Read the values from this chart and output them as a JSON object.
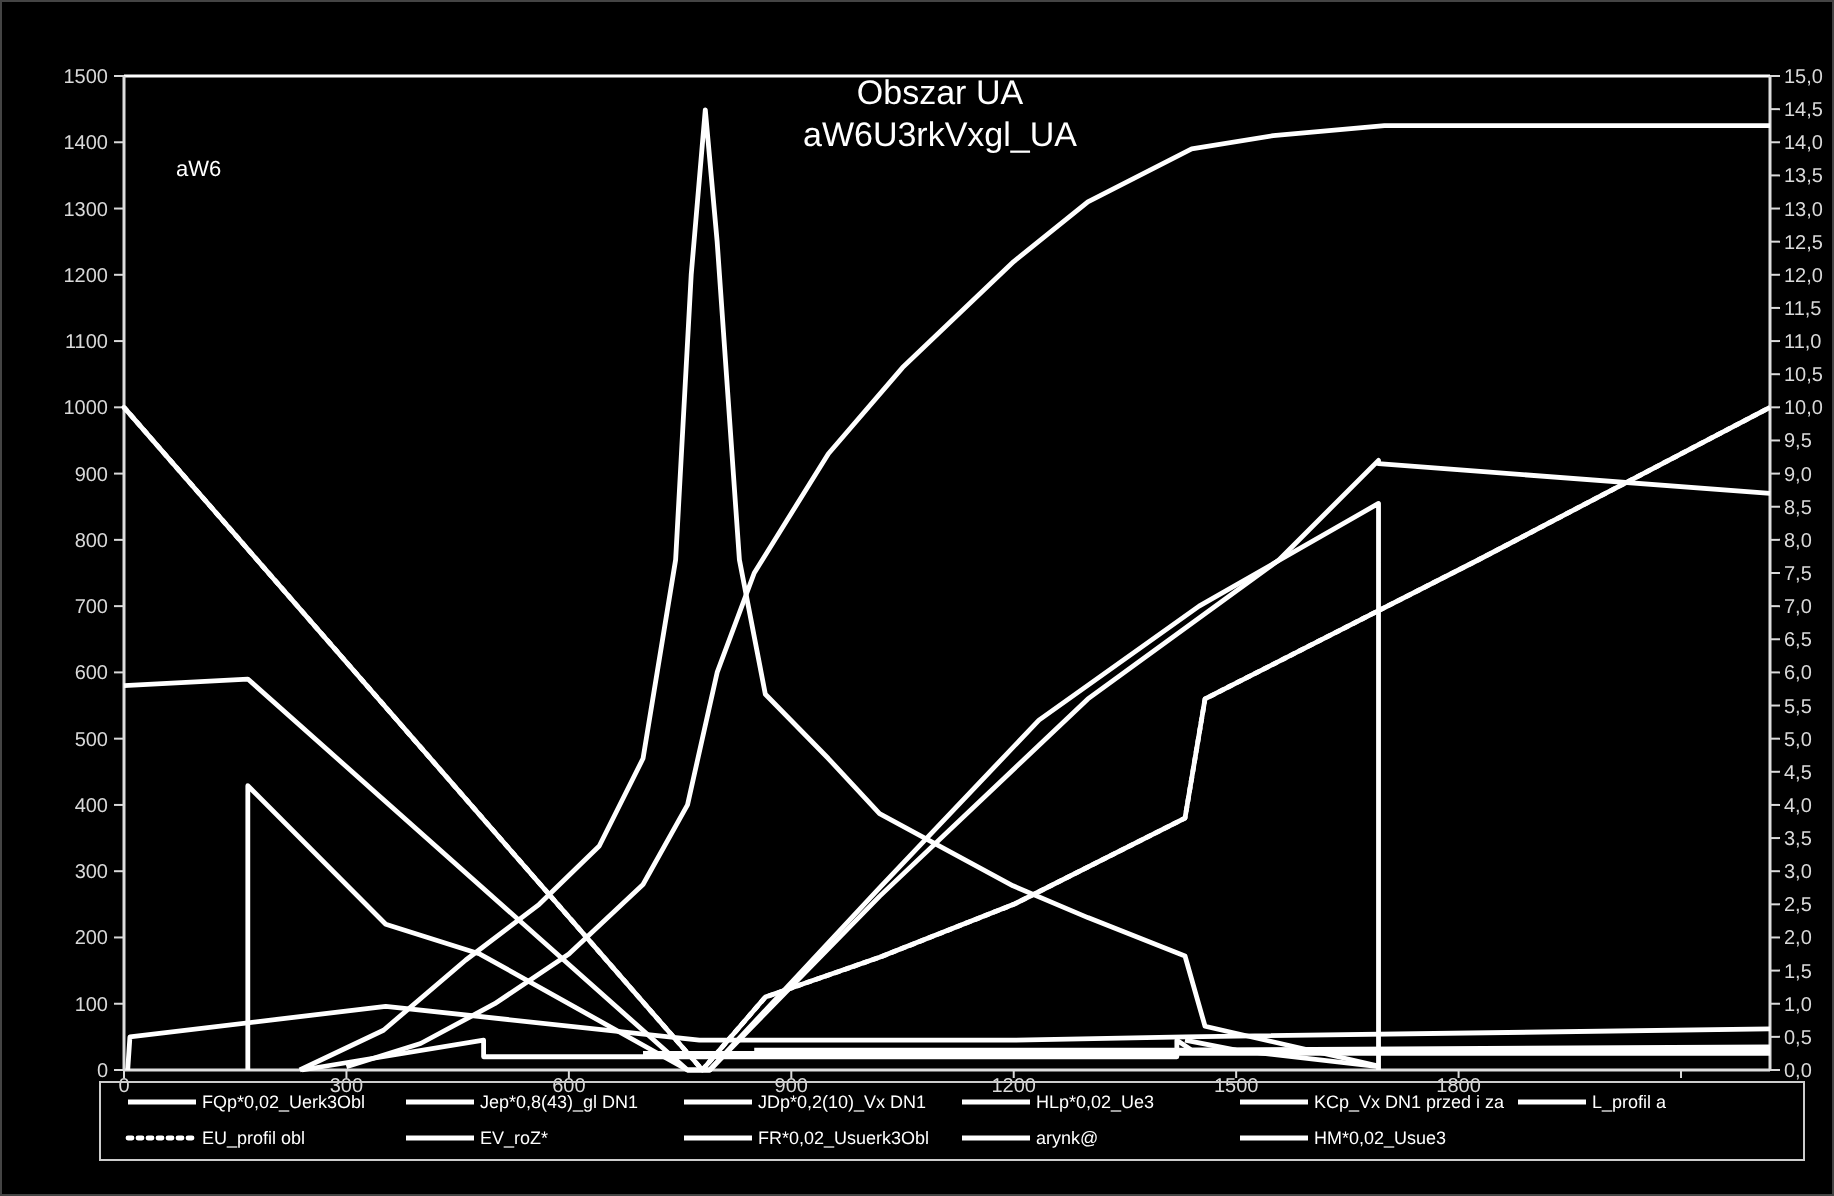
{
  "chart_data": {
    "type": "line",
    "title": "Obszar UA",
    "subtitle": "aW6U3rkVxgl_UA",
    "annotations": [
      "aW6"
    ],
    "xlim": [
      0,
      2220
    ],
    "xticks": [
      0,
      300,
      600,
      900,
      1200,
      1500,
      1800,
      {
        "value": 2100,
        "label": null
      }
    ],
    "ylim": [
      0,
      1500
    ],
    "yticks": [
      0,
      100,
      200,
      300,
      400,
      500,
      600,
      700,
      800,
      900,
      1000,
      1100,
      1200,
      1300,
      1400,
      1500
    ],
    "y2lim": [
      0,
      15
    ],
    "y2ticks": [
      {
        "value": 0,
        "label": "0,0"
      },
      {
        "value": 0.5,
        "label": "0,5"
      },
      {
        "value": 1,
        "label": "1,0"
      },
      {
        "value": 1.5,
        "label": "1,5"
      },
      {
        "value": 2,
        "label": "2,0"
      },
      {
        "value": 2.5,
        "label": "2,5"
      },
      {
        "value": 3,
        "label": "3,0"
      },
      {
        "value": 3.5,
        "label": "3,5"
      },
      {
        "value": 4,
        "label": "4,0"
      },
      {
        "value": 4.5,
        "label": "4,5"
      },
      {
        "value": 5,
        "label": "5,0"
      },
      {
        "value": 5.5,
        "label": "5,5"
      },
      {
        "value": 6,
        "label": "6,0"
      },
      {
        "value": 6.5,
        "label": "6,5"
      },
      {
        "value": 7,
        "label": "7,0"
      },
      {
        "value": 7.5,
        "label": "7,5"
      },
      {
        "value": 8,
        "label": "8,0"
      },
      {
        "value": 8.5,
        "label": "8,5"
      },
      {
        "value": 9,
        "label": "9,0"
      },
      {
        "value": 9.5,
        "label": "9,5"
      },
      {
        "value": 10,
        "label": "10,0"
      },
      {
        "value": 10.5,
        "label": "10,5"
      },
      {
        "value": 11,
        "label": "11,0"
      },
      {
        "value": 11.5,
        "label": "11,5"
      },
      {
        "value": 12,
        "label": "12,0"
      },
      {
        "value": 12.5,
        "label": "12,5"
      },
      {
        "value": 13,
        "label": "13,0"
      },
      {
        "value": 13.5,
        "label": "13,5"
      },
      {
        "value": 14,
        "label": "14,0"
      },
      {
        "value": 14.5,
        "label": "14,5"
      },
      {
        "value": 15,
        "label": "15,0"
      }
    ],
    "grid": false,
    "legend": "bottom",
    "series": [
      {
        "name": "FQp*0,02_Uerk3Obl",
        "color": "#ffffff",
        "x": [
          0,
          167,
          760,
          790,
          1019,
          1300,
          1558,
          1692,
          1692,
          2220
        ],
        "values": [
          580,
          590,
          0,
          0,
          262,
          560,
          770,
          920,
          915,
          870
        ]
      },
      {
        "name": "Jep*0,8(43)_gl DN1",
        "color": "#ffffff",
        "x": [
          167,
          167,
          353,
          480,
          760,
          790,
          1019,
          1234,
          1450,
          1692,
          1692
        ],
        "values": [
          0,
          429,
          220,
          175,
          0,
          0,
          275,
          528,
          700,
          855,
          0
        ]
      },
      {
        "name": "JDp*0,2(10)_Vx DN1",
        "color": "#ffffff",
        "x": [
          300,
          400,
          500,
          600,
          700,
          760,
          800,
          850,
          950,
          1050,
          1200,
          1300,
          1440,
          1550,
          1700,
          2220
        ],
        "values": [
          5,
          40,
          100,
          175,
          280,
          400,
          600,
          750,
          930,
          1060,
          1220,
          1310,
          1390,
          1410,
          1425,
          1425
        ]
      },
      {
        "name": "HLp*0,02_Ue3",
        "color": "#ffffff",
        "x": [
          5,
          8,
          353,
          776,
          1200,
          1431,
          2220
        ],
        "values": [
          0,
          50,
          96,
          45,
          45,
          50,
          62
        ]
      },
      {
        "name": "KCp_Vx DN1 przed i za",
        "color": "#ffffff",
        "x": [
          240,
          485,
          485,
          1420,
          1420,
          1440,
          2220
        ],
        "values": [
          0,
          45,
          20,
          20,
          45,
          30,
          35
        ]
      },
      {
        "name": "L_profil  a",
        "color": "#ffffff",
        "axis": "y2",
        "x": [
          0,
          780,
          865,
          1019,
          1200,
          1431,
          1458,
          1827,
          2220
        ],
        "values": [
          10,
          0,
          1.1,
          1.7,
          2.5,
          3.8,
          5.6,
          7.7,
          10
        ]
      },
      {
        "name": "EU_profil obl",
        "color": "#ffffff",
        "axis": "y2",
        "line_style": "dotted",
        "x": [
          0,
          780,
          865,
          1019,
          1200,
          1431,
          1458,
          1827,
          2220
        ],
        "values": [
          10,
          0,
          1.1,
          1.7,
          2.5,
          3.8,
          5.6,
          7.7,
          10
        ]
      },
      {
        "name": "EV_roZ*",
        "color": "#ffffff",
        "x": [
          237,
          350,
          461,
          560,
          641,
          700,
          744,
          765,
          784,
          800,
          830,
          865,
          950,
          1019,
          1199,
          1300,
          1431,
          1458,
          1692
        ],
        "values": [
          0,
          60,
          166,
          250,
          338,
          470,
          770,
          1200,
          1449,
          1250,
          770,
          567,
          470,
          387,
          278,
          230,
          172,
          66,
          6
        ]
      },
      {
        "name": "FR*0,02_Usuerk3Obl",
        "color": "#ffffff",
        "x": [
          700,
          2220
        ],
        "values": [
          25,
          25
        ]
      },
      {
        "name": "arynk@",
        "color": "#ffffff",
        "x": [
          1431,
          1500,
          1692
        ],
        "values": [
          45,
          30,
          5
        ]
      },
      {
        "name": "HM*0,02_Usue3",
        "color": "#ffffff",
        "x": [
          850,
          2220
        ],
        "values": [
          30,
          30
        ]
      }
    ]
  }
}
